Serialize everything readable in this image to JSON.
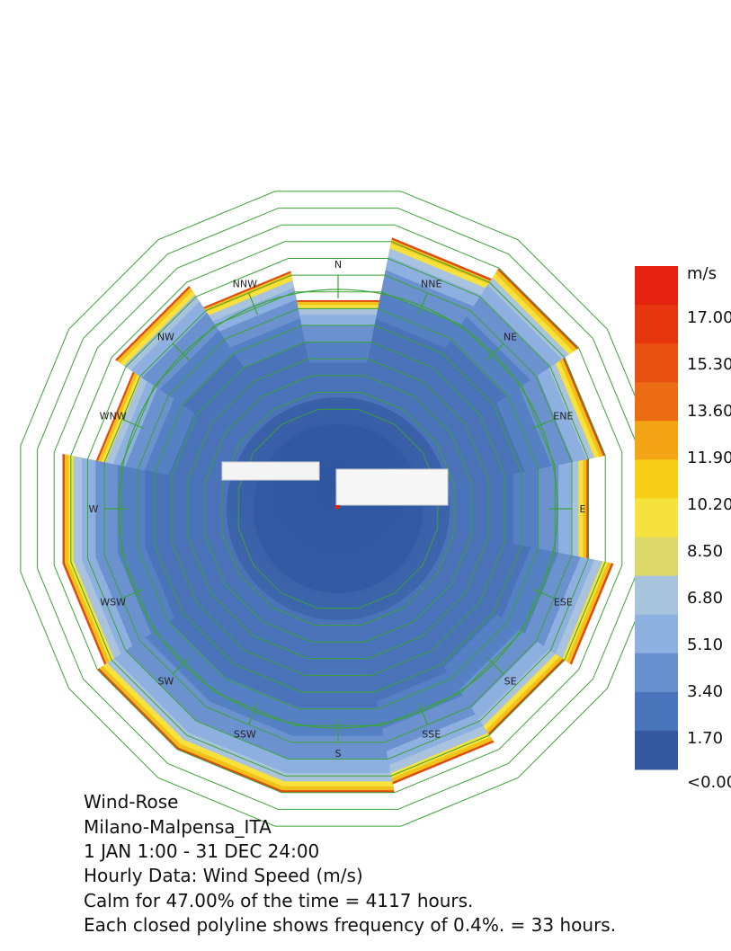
{
  "chart_data": {
    "type": "wind-rose",
    "directions": [
      "N",
      "NNE",
      "NE",
      "ENE",
      "E",
      "ESE",
      "SE",
      "SSE",
      "S",
      "SSW",
      "SW",
      "WSW",
      "W",
      "WNW",
      "NW",
      "NNW"
    ],
    "unit": "m/s",
    "legend": {
      "title": "m/s",
      "ticks": [
        "17.00",
        "15.30",
        "13.60",
        "11.90",
        "10.20",
        "8.50",
        "6.80",
        "5.10",
        "3.40",
        "1.70",
        "<0.00"
      ],
      "colors": [
        "#e5210f",
        "#e6360e",
        "#e85010",
        "#eb6c12",
        "#f4a516",
        "#f7cf18",
        "#f6e23f",
        "#dcd86a",
        "#a8c4dc",
        "#8eb1e2",
        "#6890cf",
        "#4a74bb",
        "#34589f"
      ]
    },
    "relative_frequency_pct": [
      3.0,
      4.5,
      4.8,
      4.4,
      4.0,
      4.6,
      4.4,
      4.6,
      4.8,
      4.8,
      4.8,
      4.6,
      4.6,
      3.8,
      4.3,
      3.7
    ],
    "calm_pct": 47.0,
    "ring_step_pct": 0.4,
    "ring_count": 14
  },
  "text": {
    "title": "Wind-Rose",
    "location": "Milano-Malpensa_ITA",
    "period": "1 JAN 1:00 - 31 DEC 24:00",
    "data_type": "Hourly Data: Wind Speed (m/s)",
    "calm": "Calm for 47.00% of the time = 4117 hours.",
    "polyline": "Each closed polyline shows frequency of 0.4%. = 33 hours."
  }
}
